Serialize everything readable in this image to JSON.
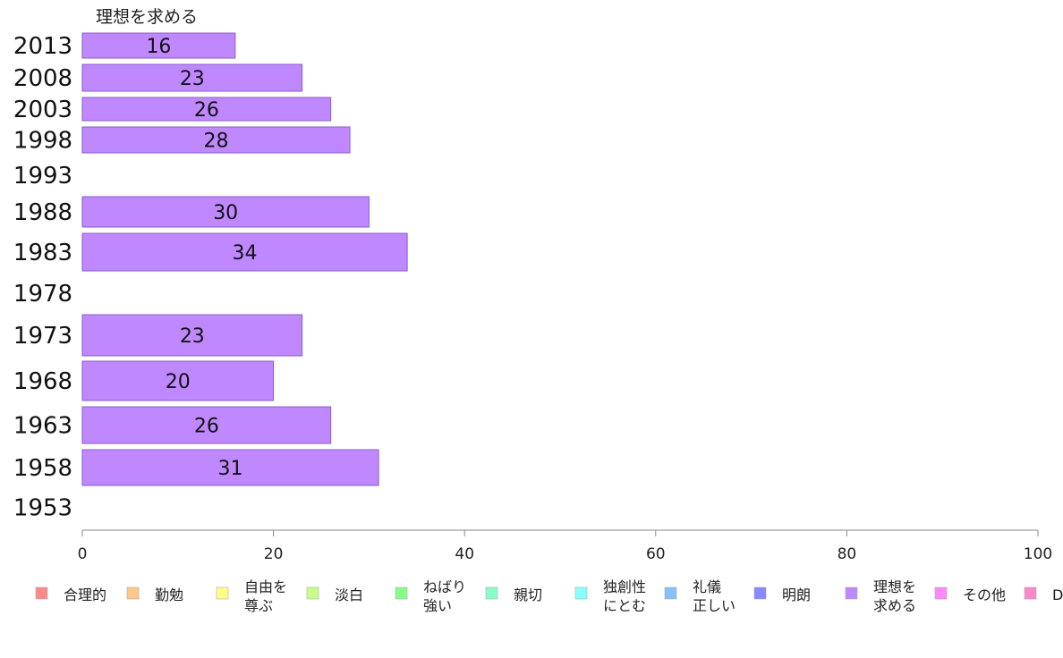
{
  "chart_data": {
    "type": "bar",
    "orientation": "horizontal",
    "title": "",
    "xlabel": "",
    "ylabel": "",
    "xlim": [
      0,
      100
    ],
    "x_ticks": [
      "0",
      "20",
      "40",
      "60",
      "80",
      "100"
    ],
    "categories": [
      "2013",
      "2008",
      "2003",
      "1998",
      "1993",
      "1988",
      "1983",
      "1978",
      "1973",
      "1968",
      "1963",
      "1958",
      "1953"
    ],
    "series": [
      {
        "name": "理想を求める",
        "color": "#bf88ff",
        "values": [
          16,
          23,
          26,
          28,
          null,
          30,
          34,
          null,
          23,
          20,
          26,
          31,
          null
        ],
        "labels": [
          "16",
          "23",
          "26",
          "28",
          "",
          "30",
          "34",
          "",
          "23",
          "20",
          "26",
          "31",
          ""
        ]
      }
    ],
    "legend": {
      "position": "bottom",
      "items": [
        {
          "label": [
            "合理的"
          ],
          "color": "#ff8888"
        },
        {
          "label": [
            "勤勉"
          ],
          "color": "#ffc888"
        },
        {
          "label": [
            "自由を",
            "尊ぶ"
          ],
          "color": "#ffff88"
        },
        {
          "label": [
            "淡白"
          ],
          "color": "#c8ff88"
        },
        {
          "label": [
            "ねばり",
            "強い"
          ],
          "color": "#88ff88"
        },
        {
          "label": [
            "親切"
          ],
          "color": "#88ffc8"
        },
        {
          "label": [
            "独創性",
            "にとむ"
          ],
          "color": "#88ffff"
        },
        {
          "label": [
            "礼儀",
            "正しい"
          ],
          "color": "#88c0ff"
        },
        {
          "label": [
            "明朗"
          ],
          "color": "#8888ff"
        },
        {
          "label": [
            "理想を",
            "求める"
          ],
          "color": "#bf88ff"
        },
        {
          "label": [
            "その他"
          ],
          "color": "#ff88ff"
        },
        {
          "label": [
            "D"
          ],
          "color": "#ff88c8"
        }
      ]
    },
    "grid": false
  }
}
